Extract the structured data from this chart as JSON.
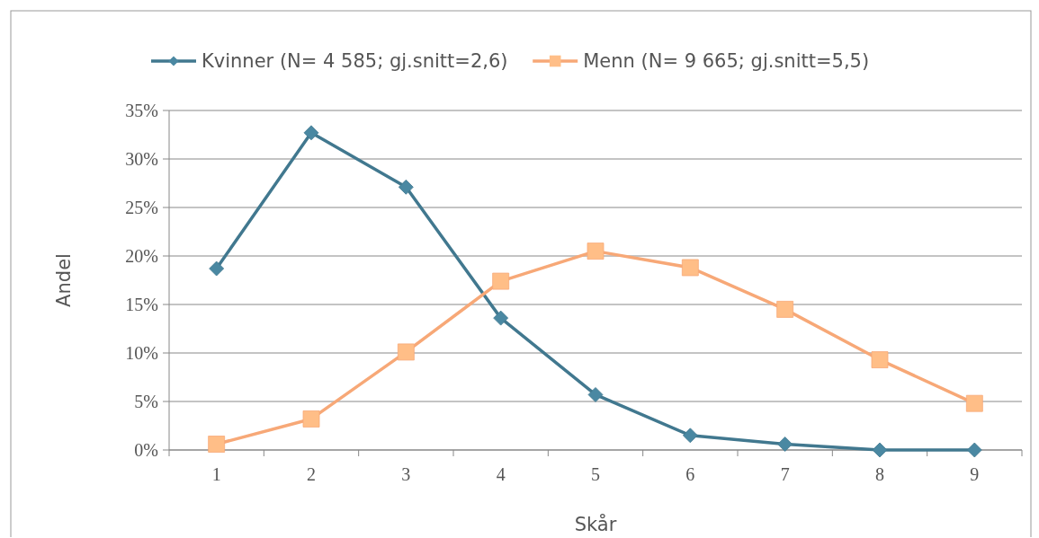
{
  "chart_data": {
    "type": "line",
    "xlabel": "Skår",
    "ylabel": "Andel",
    "categories": [
      "1",
      "2",
      "3",
      "4",
      "5",
      "6",
      "7",
      "8",
      "9"
    ],
    "series": [
      {
        "name": "Kvinner (N= 4 585; gj.snitt=2,6)",
        "color": "#41788f",
        "marker": "diamond",
        "values": [
          18.7,
          32.7,
          27.1,
          13.6,
          5.7,
          1.5,
          0.6,
          0,
          0
        ]
      },
      {
        "name": "Menn (N= 9 665; gj.snitt=5,5)",
        "color": "#f7a877",
        "marker": "square",
        "values": [
          0.6,
          3.2,
          10.1,
          17.4,
          20.5,
          18.8,
          14.5,
          9.3,
          4.8
        ]
      }
    ],
    "ylim": [
      0,
      35
    ],
    "yticks": [
      {
        "value": 0,
        "label": "0%"
      },
      {
        "value": 5,
        "label": "5%"
      },
      {
        "value": 10,
        "label": "10%"
      },
      {
        "value": 15,
        "label": "15%"
      },
      {
        "value": 20,
        "label": "20%"
      },
      {
        "value": 25,
        "label": "25%"
      },
      {
        "value": 30,
        "label": "30%"
      },
      {
        "value": 35,
        "label": "35%"
      }
    ],
    "grid": "y",
    "legend": "top",
    "line_style": "solid"
  }
}
